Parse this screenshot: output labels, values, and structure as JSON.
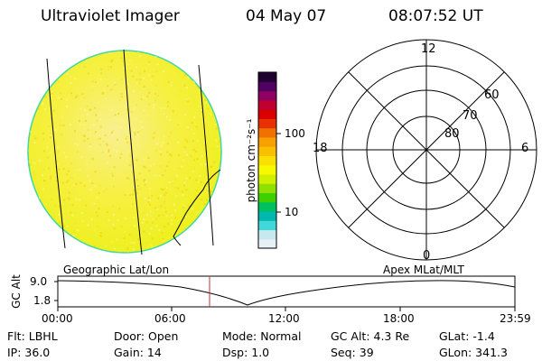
{
  "header": {
    "instrument": "Ultraviolet Imager",
    "date": "04 May 07",
    "time": "08:07:52 UT"
  },
  "colorbar": {
    "unit_label": "photon cm⁻²s⁻¹",
    "ticks": [
      "100",
      "10"
    ],
    "colors": [
      "#e8f0f8",
      "#c8e8f0",
      "#40d8d8",
      "#00b8b0",
      "#00c060",
      "#40d000",
      "#90e000",
      "#d0f000",
      "#f8f800",
      "#f8e000",
      "#f8c000",
      "#f8a000",
      "#f07000",
      "#e83000",
      "#d80000",
      "#c00030",
      "#900060",
      "#500060",
      "#200030"
    ]
  },
  "polar": {
    "mlt_labels": {
      "top": "12",
      "right": "6",
      "bottom": "0",
      "left": "18"
    },
    "lat_labels": [
      "60",
      "70",
      "80"
    ]
  },
  "timeline": {
    "left_label": "Geographic Lat/Lon",
    "right_label": "Apex MLat/MLT",
    "yaxis_title": "GC Alt",
    "ytick_top": "9.0",
    "ytick_bottom": "1.8",
    "xticks": [
      "00:00",
      "06:00",
      "12:00",
      "18:00",
      "23:59"
    ],
    "marker_color": "#c03030"
  },
  "info": {
    "filter": "Flt: LBHL",
    "door": "Door: Open",
    "mode": "Mode: Normal",
    "gc_alt": "GC Alt: 4.3 Re",
    "glat": "GLat:  -1.4",
    "ip": "IP: 36.0",
    "gain": "Gain: 14",
    "dsp": "Dsp:    1.0",
    "seq": "Seq: 39",
    "glon": "GLon: 341.3"
  }
}
